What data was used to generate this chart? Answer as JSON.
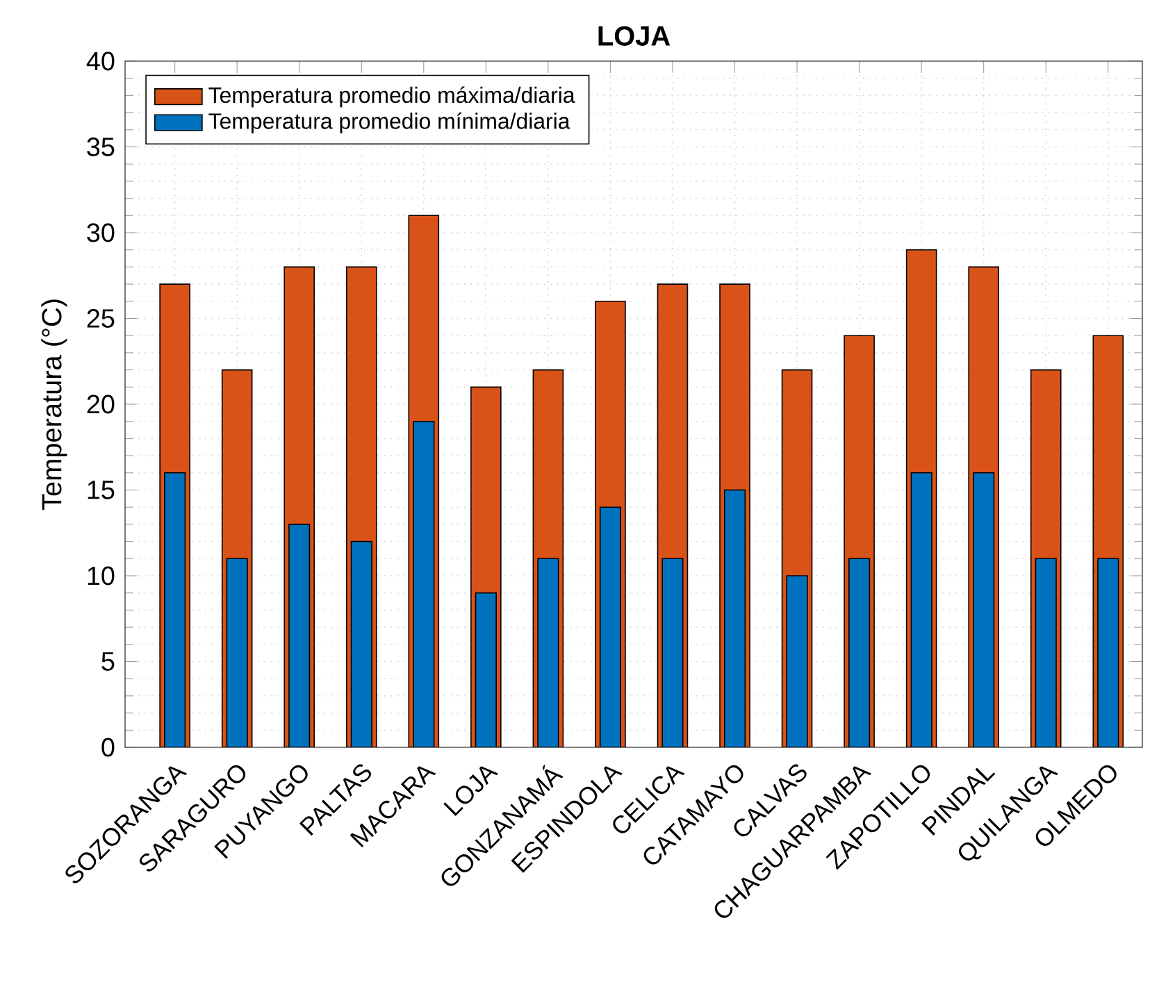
{
  "chart_data": {
    "type": "bar",
    "title": "LOJA",
    "ylabel": "Temperatura (°C)",
    "categories": [
      "SOZORANGA",
      "SARAGURO",
      "PUYANGO",
      "PALTAS",
      "MACARA",
      "LOJA",
      "GONZANAMÁ",
      "ESPINDOLA",
      "CELICA",
      "CATAMAYO",
      "CALVAS",
      "CHAGUARPAMBA",
      "ZAPOTILLO",
      "PINDAL",
      "QUILANGA",
      "OLMEDO"
    ],
    "series": [
      {
        "name": "Temperatura promedio máxima/diaria",
        "color": "#d95319",
        "values": [
          27,
          22,
          28,
          28,
          31,
          21,
          22,
          26,
          27,
          27,
          22,
          24,
          29,
          28,
          22,
          24
        ]
      },
      {
        "name": "Temperatura promedio mínima/diaria",
        "color": "#0072bd",
        "values": [
          16,
          11,
          13,
          12,
          19,
          9,
          11,
          14,
          11,
          15,
          10,
          11,
          16,
          16,
          11,
          11
        ]
      }
    ],
    "ylim": [
      0,
      40
    ],
    "yticks": [
      0,
      5,
      10,
      15,
      20,
      25,
      30,
      35,
      40
    ],
    "grid": true,
    "legend": "top left"
  }
}
